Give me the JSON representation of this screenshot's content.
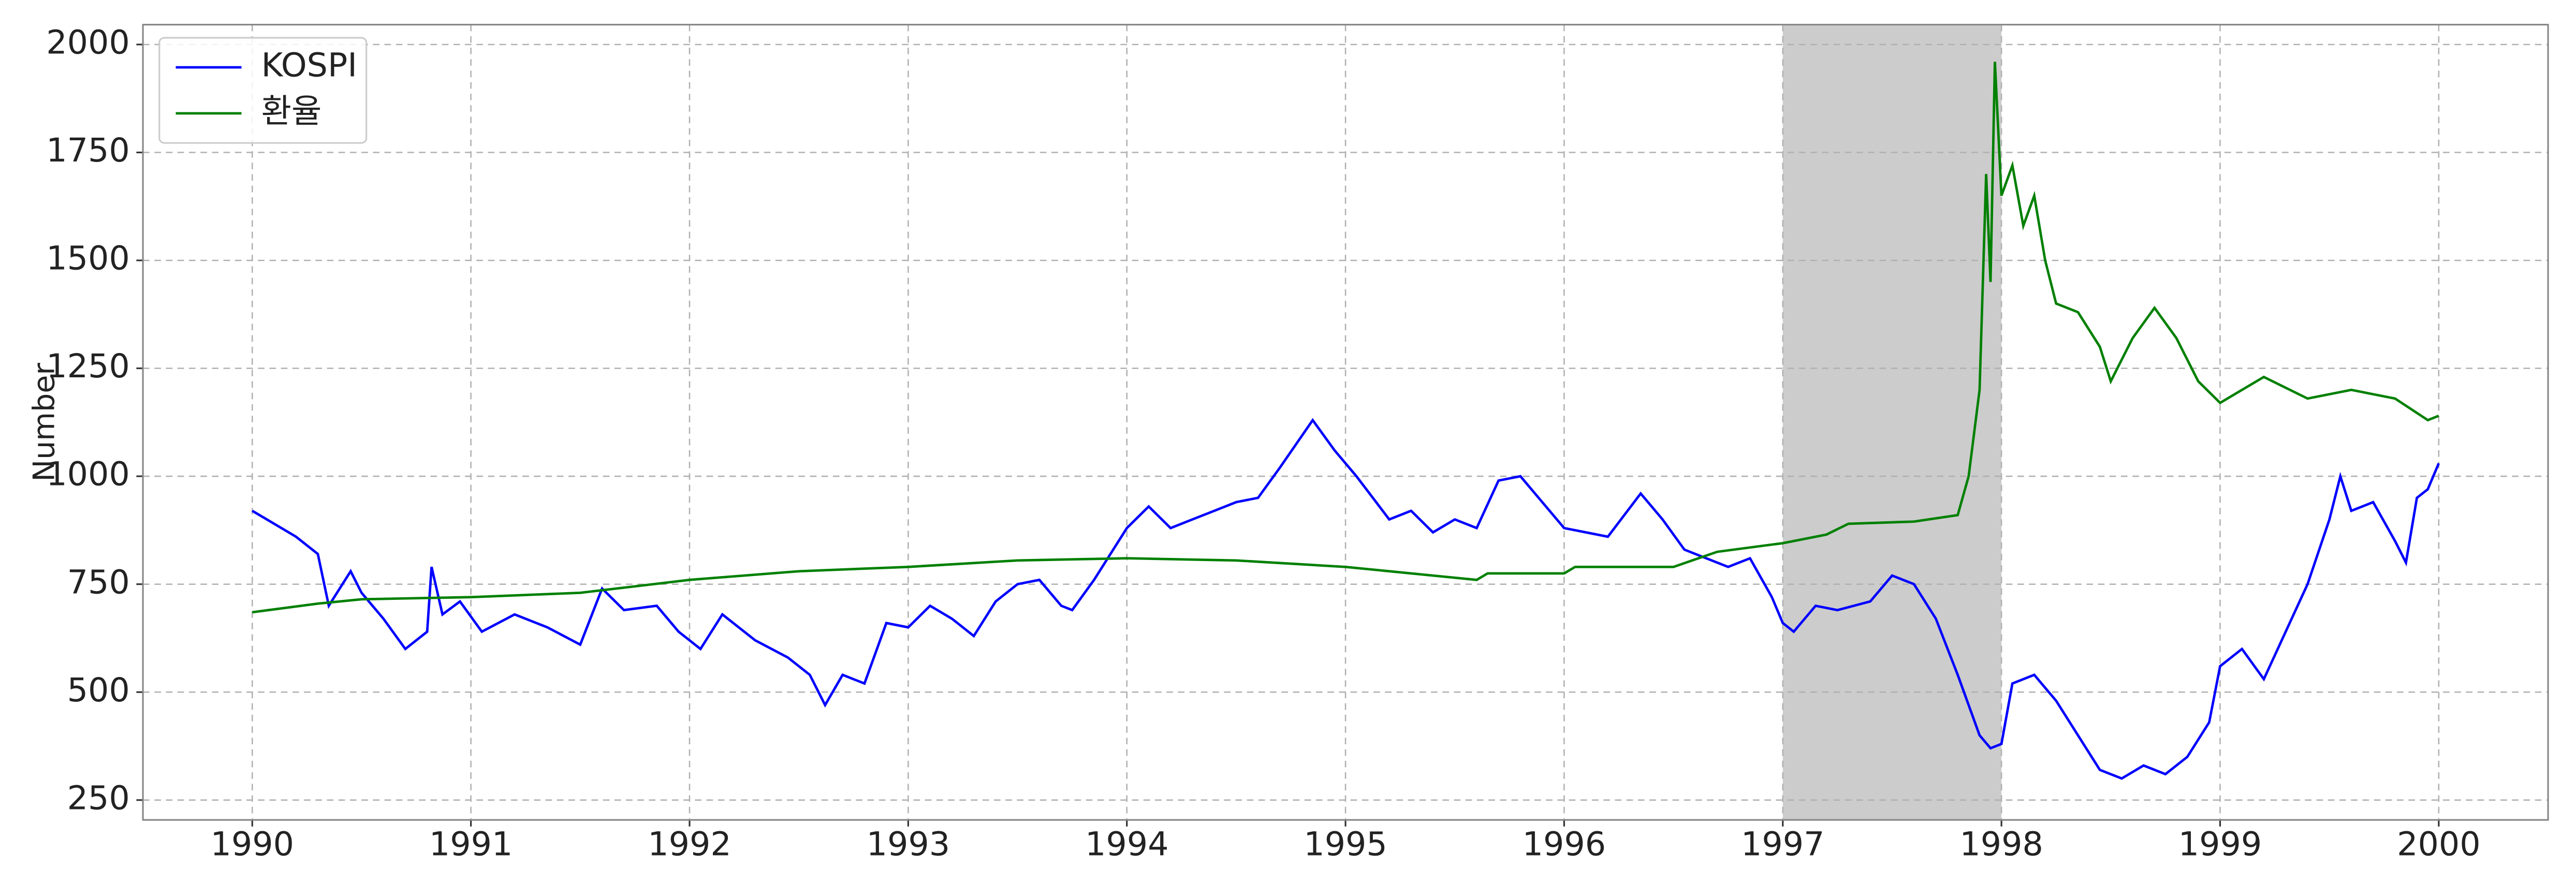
{
  "chart_data": {
    "type": "line",
    "ylabel": "Number",
    "xlim": [
      1989.5,
      2000.5
    ],
    "xticks": [
      1990,
      1991,
      1992,
      1993,
      1994,
      1995,
      1996,
      1997,
      1998,
      1999,
      2000
    ],
    "ylim": [
      204,
      2046
    ],
    "yticks": [
      250,
      500,
      750,
      1000,
      1250,
      1500,
      1750,
      2000
    ],
    "grid": true,
    "legend": "upper left",
    "shaded_span": [
      1997,
      1998
    ],
    "shaded_color": "#cccccc",
    "series": [
      {
        "name": "KOSPI",
        "color": "#0000ff",
        "x": [
          1990.0,
          1990.1,
          1990.2,
          1990.3,
          1990.35,
          1990.45,
          1990.5,
          1990.6,
          1990.7,
          1990.8,
          1990.82,
          1990.87,
          1990.95,
          1991.05,
          1991.2,
          1991.35,
          1991.5,
          1991.6,
          1991.7,
          1991.85,
          1991.95,
          1992.05,
          1992.15,
          1992.3,
          1992.45,
          1992.55,
          1992.62,
          1992.7,
          1992.8,
          1992.9,
          1993.0,
          1993.1,
          1993.2,
          1993.3,
          1993.4,
          1993.5,
          1993.6,
          1993.7,
          1993.75,
          1993.85,
          1994.0,
          1994.1,
          1994.2,
          1994.3,
          1994.4,
          1994.5,
          1994.6,
          1994.7,
          1994.85,
          1994.95,
          1995.05,
          1995.2,
          1995.3,
          1995.4,
          1995.5,
          1995.6,
          1995.7,
          1995.8,
          1995.9,
          1996.0,
          1996.1,
          1996.2,
          1996.35,
          1996.45,
          1996.55,
          1996.65,
          1996.75,
          1996.85,
          1996.95,
          1997.0,
          1997.05,
          1997.15,
          1997.25,
          1997.4,
          1997.5,
          1997.6,
          1997.7,
          1997.8,
          1997.9,
          1997.95,
          1998.0,
          1998.05,
          1998.15,
          1998.25,
          1998.35,
          1998.45,
          1998.55,
          1998.65,
          1998.75,
          1998.85,
          1998.95,
          1999.0,
          1999.1,
          1999.2,
          1999.3,
          1999.4,
          1999.5,
          1999.55,
          1999.6,
          1999.7,
          1999.8,
          1999.85,
          1999.9,
          1999.95,
          2000.0
        ],
        "values": [
          920,
          890,
          860,
          820,
          700,
          780,
          730,
          670,
          600,
          640,
          790,
          680,
          710,
          640,
          680,
          650,
          610,
          740,
          690,
          700,
          640,
          600,
          680,
          620,
          580,
          540,
          470,
          540,
          520,
          660,
          650,
          700,
          670,
          630,
          710,
          750,
          760,
          700,
          690,
          760,
          880,
          930,
          880,
          900,
          920,
          940,
          950,
          1020,
          1130,
          1060,
          1000,
          900,
          920,
          870,
          900,
          880,
          990,
          1000,
          940,
          880,
          870,
          860,
          960,
          900,
          830,
          810,
          790,
          810,
          720,
          660,
          640,
          700,
          690,
          710,
          770,
          750,
          670,
          540,
          400,
          370,
          380,
          520,
          540,
          480,
          400,
          320,
          300,
          330,
          310,
          350,
          430,
          560,
          600,
          530,
          640,
          750,
          900,
          1000,
          920,
          940,
          850,
          800,
          950,
          970,
          1030
        ]
      },
      {
        "name": "환율",
        "color": "#008000",
        "x": [
          1990.0,
          1990.3,
          1990.5,
          1991.0,
          1991.5,
          1992.0,
          1992.5,
          1993.0,
          1993.5,
          1994.0,
          1994.5,
          1995.0,
          1995.3,
          1995.6,
          1995.65,
          1996.0,
          1996.05,
          1996.5,
          1996.7,
          1997.0,
          1997.2,
          1997.3,
          1997.6,
          1997.8,
          1997.85,
          1997.9,
          1997.93,
          1997.95,
          1997.97,
          1998.0,
          1998.05,
          1998.1,
          1998.15,
          1998.2,
          1998.25,
          1998.35,
          1998.45,
          1998.5,
          1998.6,
          1998.7,
          1998.8,
          1998.9,
          1999.0,
          1999.2,
          1999.4,
          1999.6,
          1999.8,
          1999.95,
          2000.0
        ],
        "values": [
          685,
          705,
          715,
          720,
          730,
          760,
          780,
          790,
          805,
          810,
          805,
          790,
          775,
          760,
          775,
          775,
          790,
          790,
          825,
          845,
          865,
          890,
          895,
          910,
          1000,
          1200,
          1700,
          1450,
          1960,
          1650,
          1720,
          1580,
          1650,
          1500,
          1400,
          1380,
          1300,
          1220,
          1320,
          1390,
          1320,
          1220,
          1170,
          1230,
          1180,
          1200,
          1180,
          1130,
          1140
        ]
      }
    ]
  }
}
